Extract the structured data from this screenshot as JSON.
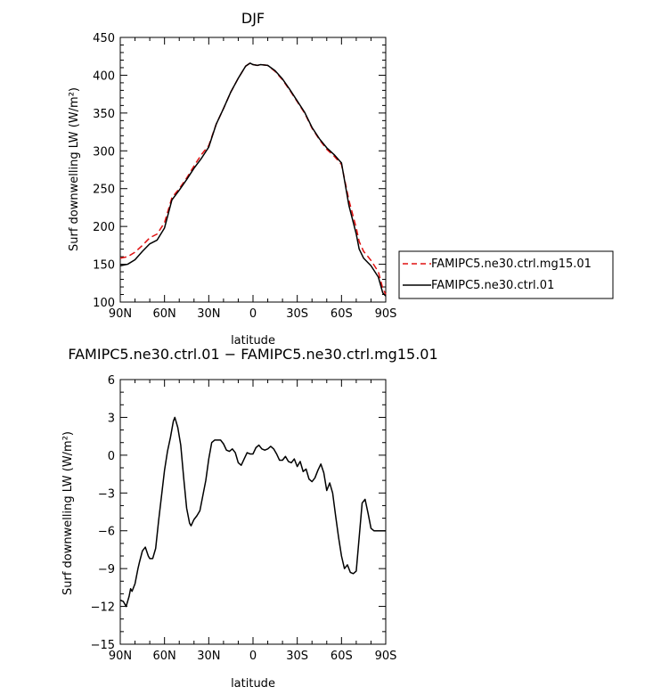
{
  "chart_data": [
    {
      "type": "line",
      "title": "DJF",
      "xlabel": "latitude",
      "ylabel": "Surf downwelling LW (W/m²)",
      "xlim": [
        -90,
        90
      ],
      "ylim": [
        100,
        450
      ],
      "xticks": [
        -90,
        -60,
        -30,
        0,
        30,
        60,
        90
      ],
      "xtick_labels": [
        "90N",
        "60N",
        "30N",
        "0",
        "30S",
        "60S",
        "90S"
      ],
      "yticks": [
        100,
        150,
        200,
        250,
        300,
        350,
        400,
        450
      ],
      "ytick_labels": [
        "100",
        "150",
        "200",
        "250",
        "300",
        "350",
        "400",
        "450"
      ],
      "legend_position": "right",
      "series": [
        {
          "name": "FAMIPC5.ne30.ctrl.mg15.01",
          "color": "#e01010",
          "style": "dashed",
          "x": [
            -90,
            -85,
            -80,
            -75,
            -70,
            -65,
            -60,
            -55,
            -50,
            -45,
            -40,
            -35,
            -30,
            -25,
            -20,
            -15,
            -10,
            -5,
            -2,
            0,
            3,
            5,
            10,
            15,
            20,
            25,
            30,
            35,
            40,
            45,
            50,
            55,
            60,
            65,
            70,
            72,
            75,
            78,
            80,
            85,
            88,
            90
          ],
          "y": [
            158,
            160,
            166,
            175,
            185,
            190,
            205,
            238,
            250,
            264,
            280,
            295,
            307,
            335,
            356,
            378,
            396,
            412,
            416,
            414,
            413,
            414,
            413,
            405,
            394,
            380,
            365,
            350,
            330,
            315,
            302,
            293,
            282,
            235,
            198,
            180,
            167,
            160,
            155,
            140,
            118,
            110
          ]
        },
        {
          "name": "FAMIPC5.ne30.ctrl.01",
          "color": "#000000",
          "style": "solid",
          "x": [
            -90,
            -85,
            -80,
            -75,
            -70,
            -65,
            -60,
            -55,
            -50,
            -45,
            -40,
            -35,
            -30,
            -25,
            -20,
            -15,
            -10,
            -5,
            -2,
            0,
            3,
            5,
            10,
            15,
            20,
            25,
            30,
            35,
            40,
            45,
            50,
            55,
            60,
            65,
            70,
            72,
            75,
            78,
            80,
            85,
            88,
            90
          ],
          "y": [
            148,
            150,
            156,
            167,
            177,
            182,
            198,
            235,
            248,
            262,
            277,
            290,
            305,
            335,
            356,
            378,
            396,
            412,
            416,
            414,
            413,
            414,
            413,
            406,
            395,
            381,
            366,
            351,
            331,
            316,
            304,
            295,
            284,
            228,
            190,
            170,
            158,
            152,
            148,
            133,
            112,
            108
          ]
        }
      ]
    },
    {
      "type": "line",
      "title": "FAMIPC5.ne30.ctrl.01 − FAMIPC5.ne30.ctrl.mg15.01",
      "xlabel": "latitude",
      "ylabel": "Surf downwelling LW (W/m²)",
      "xlim": [
        -90,
        90
      ],
      "ylim": [
        -15,
        6
      ],
      "xticks": [
        -90,
        -60,
        -30,
        0,
        30,
        60,
        90
      ],
      "xtick_labels": [
        "90N",
        "60N",
        "30N",
        "0",
        "30S",
        "60S",
        "90S"
      ],
      "yticks": [
        -15,
        -12,
        -9,
        -6,
        -3,
        0,
        3,
        6
      ],
      "ytick_labels": [
        "−15",
        "−12",
        "−9",
        "−6",
        "−3",
        "0",
        "3",
        "6"
      ],
      "series": [
        {
          "color": "#000000",
          "style": "solid",
          "x": [
            -90,
            -88,
            -86,
            -84,
            -83,
            -82,
            -80,
            -78,
            -77,
            -75,
            -73,
            -71,
            -70,
            -68,
            -66,
            -64,
            -62,
            -60,
            -58,
            -56,
            -54,
            -53,
            -51,
            -49,
            -47,
            -45,
            -43,
            -42,
            -40,
            -38,
            -36,
            -34,
            -32,
            -30,
            -28,
            -26,
            -24,
            -22,
            -20,
            -18,
            -16,
            -14,
            -12,
            -10,
            -8,
            -6,
            -4,
            -2,
            0,
            2,
            4,
            6,
            8,
            10,
            12,
            14,
            16,
            18,
            20,
            22,
            24,
            26,
            28,
            30,
            32,
            34,
            36,
            38,
            40,
            42,
            44,
            46,
            48,
            50,
            52,
            54,
            56,
            58,
            60,
            62,
            64,
            66,
            68,
            70,
            72,
            74,
            76,
            78,
            80,
            82,
            84,
            86,
            88,
            90
          ],
          "y": [
            -11.5,
            -11.6,
            -12.0,
            -11.2,
            -10.6,
            -10.8,
            -10.2,
            -9.0,
            -8.5,
            -7.6,
            -7.3,
            -8.0,
            -8.2,
            -8.2,
            -7.4,
            -5.2,
            -3.2,
            -1.2,
            0.3,
            1.4,
            2.7,
            3.0,
            2.2,
            0.8,
            -1.8,
            -4.2,
            -5.4,
            -5.6,
            -5.1,
            -4.8,
            -4.4,
            -3.2,
            -2.0,
            -0.3,
            1.0,
            1.2,
            1.2,
            1.2,
            0.9,
            0.4,
            0.3,
            0.5,
            0.2,
            -0.6,
            -0.8,
            -0.3,
            0.2,
            0.1,
            0.1,
            0.6,
            0.8,
            0.5,
            0.4,
            0.5,
            0.7,
            0.5,
            0.1,
            -0.4,
            -0.4,
            -0.1,
            -0.5,
            -0.6,
            -0.3,
            -0.9,
            -0.5,
            -1.3,
            -1.1,
            -1.9,
            -2.1,
            -1.8,
            -1.2,
            -0.7,
            -1.4,
            -2.8,
            -2.2,
            -3.0,
            -4.8,
            -6.5,
            -8.0,
            -9.0,
            -8.7,
            -9.3,
            -9.4,
            -9.2,
            -6.5,
            -3.8,
            -3.5,
            -4.6,
            -5.8,
            -6.0,
            -6.0,
            -6.0,
            -6.0,
            -6.0
          ]
        }
      ]
    }
  ]
}
